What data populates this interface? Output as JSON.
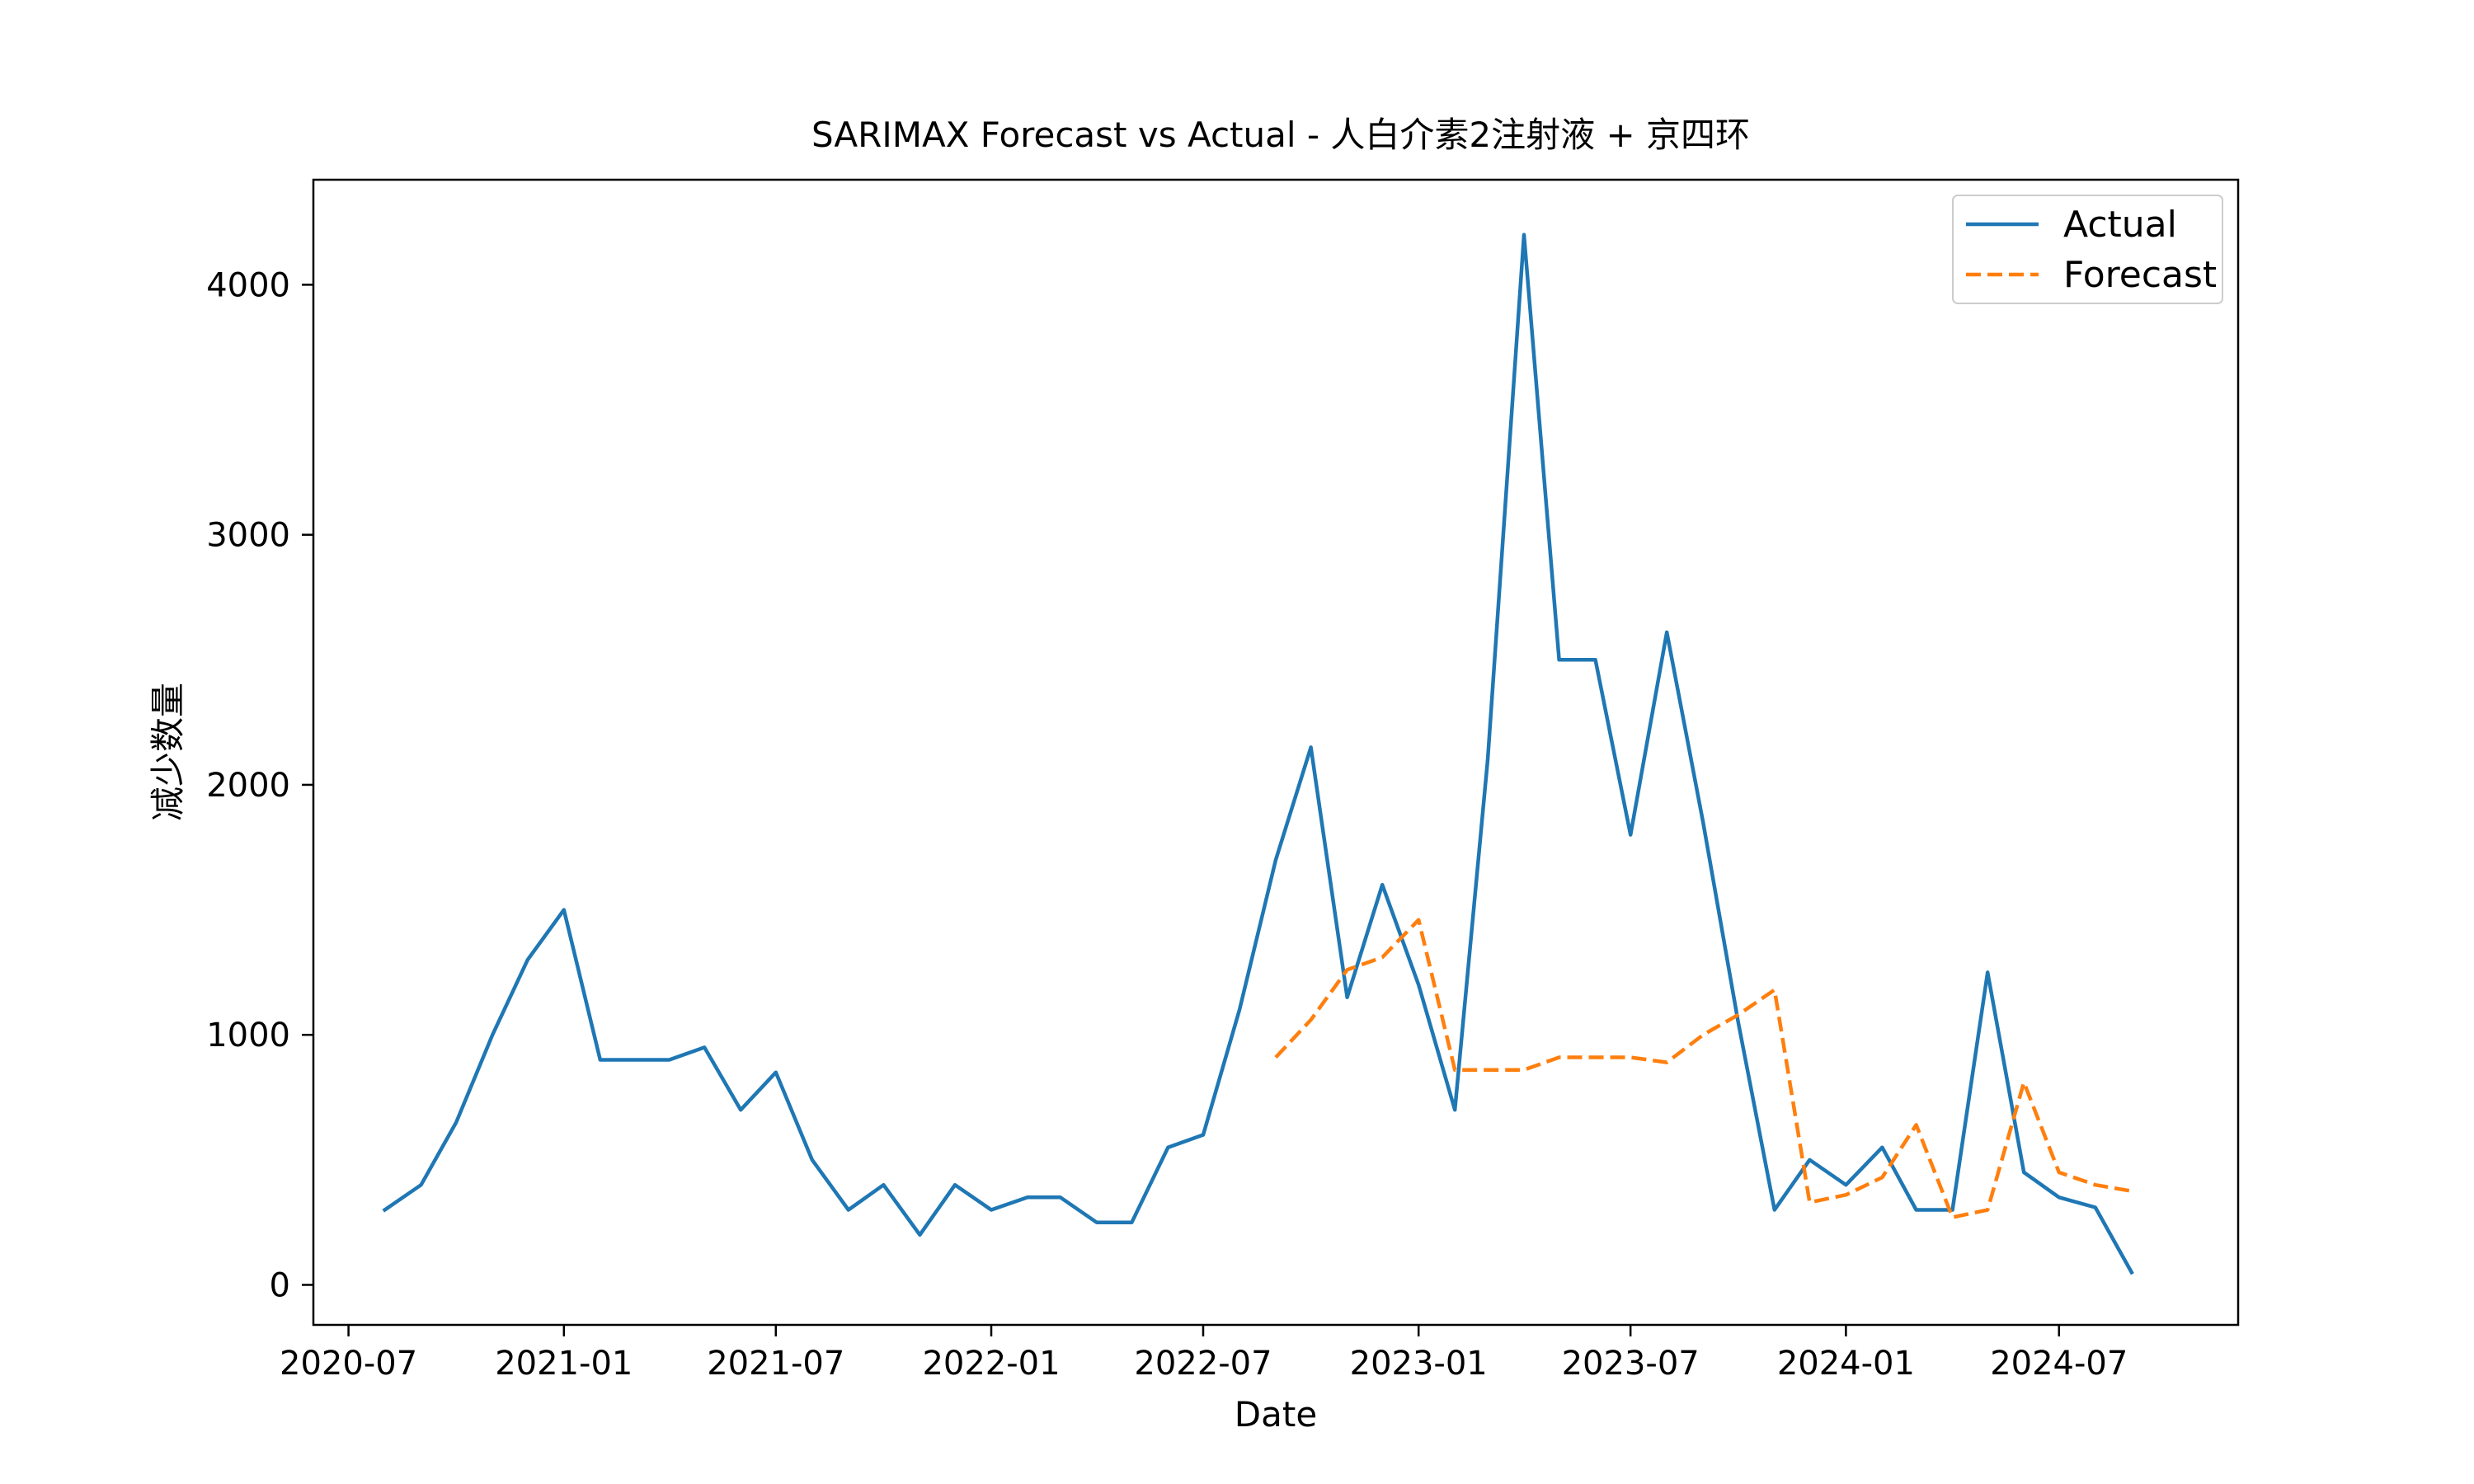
{
  "chart_data": {
    "type": "line",
    "title": "SARIMAX Forecast vs Actual - 人白介素2注射液 + 京四环",
    "xlabel": "Date",
    "ylabel": "减少数量",
    "x_tick_labels": [
      "2020-07",
      "2021-01",
      "2021-07",
      "2022-01",
      "2022-07",
      "2023-01",
      "2023-07",
      "2024-01",
      "2024-07"
    ],
    "y_tick_labels": [
      "0",
      "1000",
      "2000",
      "3000",
      "4000"
    ],
    "x_range": [
      "2020-06-01",
      "2024-12-01"
    ],
    "ylim": [
      -160,
      4420
    ],
    "grid": false,
    "legend_position": "top-right",
    "series": [
      {
        "name": "Actual",
        "color": "#1f77b4",
        "style": "solid",
        "points": [
          [
            "2020-08-01",
            300
          ],
          [
            "2020-09-01",
            400
          ],
          [
            "2020-10-01",
            650
          ],
          [
            "2020-11-01",
            1000
          ],
          [
            "2020-12-01",
            1300
          ],
          [
            "2021-01-01",
            1500
          ],
          [
            "2021-02-01",
            900
          ],
          [
            "2021-03-01",
            900
          ],
          [
            "2021-04-01",
            900
          ],
          [
            "2021-05-01",
            950
          ],
          [
            "2021-06-01",
            700
          ],
          [
            "2021-07-01",
            850
          ],
          [
            "2021-08-01",
            500
          ],
          [
            "2021-09-01",
            300
          ],
          [
            "2021-10-01",
            400
          ],
          [
            "2021-11-01",
            200
          ],
          [
            "2021-12-01",
            400
          ],
          [
            "2022-01-01",
            300
          ],
          [
            "2022-02-01",
            350
          ],
          [
            "2022-03-01",
            350
          ],
          [
            "2022-04-01",
            250
          ],
          [
            "2022-05-01",
            250
          ],
          [
            "2022-06-01",
            550
          ],
          [
            "2022-07-01",
            600
          ],
          [
            "2022-08-01",
            1100
          ],
          [
            "2022-09-01",
            1700
          ],
          [
            "2022-10-01",
            2150
          ],
          [
            "2022-11-01",
            1150
          ],
          [
            "2022-12-01",
            1600
          ],
          [
            "2023-01-01",
            1200
          ],
          [
            "2023-02-01",
            700
          ],
          [
            "2023-03-01",
            2100
          ],
          [
            "2023-04-01",
            4200
          ],
          [
            "2023-05-01",
            2500
          ],
          [
            "2023-06-01",
            2500
          ],
          [
            "2023-07-01",
            1800
          ],
          [
            "2023-08-01",
            2610
          ],
          [
            "2023-09-01",
            1850
          ],
          [
            "2023-10-01",
            1050
          ],
          [
            "2023-11-01",
            300
          ],
          [
            "2023-12-01",
            500
          ],
          [
            "2024-01-01",
            400
          ],
          [
            "2024-02-01",
            550
          ],
          [
            "2024-03-01",
            300
          ],
          [
            "2024-04-01",
            300
          ],
          [
            "2024-05-01",
            1250
          ],
          [
            "2024-06-01",
            450
          ],
          [
            "2024-07-01",
            350
          ],
          [
            "2024-08-01",
            310
          ],
          [
            "2024-09-01",
            50
          ]
        ]
      },
      {
        "name": "Forecast",
        "color": "#ff7f0e",
        "style": "dashed",
        "points": [
          [
            "2022-09-01",
            910
          ],
          [
            "2022-10-01",
            1060
          ],
          [
            "2022-11-01",
            1260
          ],
          [
            "2022-12-01",
            1310
          ],
          [
            "2023-01-01",
            1460
          ],
          [
            "2023-02-01",
            860
          ],
          [
            "2023-03-01",
            860
          ],
          [
            "2023-04-01",
            860
          ],
          [
            "2023-05-01",
            910
          ],
          [
            "2023-06-01",
            910
          ],
          [
            "2023-07-01",
            910
          ],
          [
            "2023-08-01",
            890
          ],
          [
            "2023-09-01",
            1000
          ],
          [
            "2023-10-01",
            1080
          ],
          [
            "2023-11-01",
            1180
          ],
          [
            "2023-12-01",
            330
          ],
          [
            "2024-01-01",
            360
          ],
          [
            "2024-02-01",
            430
          ],
          [
            "2024-03-01",
            640
          ],
          [
            "2024-04-01",
            270
          ],
          [
            "2024-05-01",
            300
          ],
          [
            "2024-06-01",
            810
          ],
          [
            "2024-07-01",
            450
          ],
          [
            "2024-08-01",
            400
          ],
          [
            "2024-09-01",
            375
          ]
        ]
      }
    ]
  }
}
